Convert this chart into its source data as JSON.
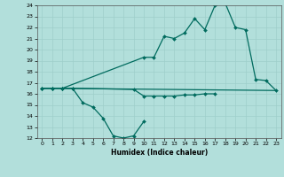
{
  "xlabel": "Humidex (Indice chaleur)",
  "bg_color": "#b2dfdb",
  "line_color": "#006b5e",
  "x_values": [
    0,
    1,
    2,
    3,
    4,
    5,
    6,
    7,
    8,
    9,
    10,
    11,
    12,
    13,
    14,
    15,
    16,
    17,
    18,
    19,
    20,
    21,
    22,
    23
  ],
  "series_zigzag": [
    16.5,
    16.5,
    16.5,
    16.5,
    15.2,
    14.8,
    13.8,
    12.2,
    12.0,
    12.2,
    13.5,
    null,
    null,
    null,
    null,
    null,
    null,
    null,
    null,
    null,
    null,
    null,
    null,
    null
  ],
  "series_low_flat": [
    16.5,
    16.5,
    16.5,
    16.5,
    null,
    null,
    null,
    null,
    null,
    16.4,
    15.8,
    15.8,
    15.8,
    15.8,
    15.9,
    15.9,
    16.0,
    16.0,
    null,
    null,
    null,
    null,
    null,
    null
  ],
  "series_main": [
    16.5,
    16.5,
    16.5,
    null,
    null,
    null,
    null,
    null,
    null,
    null,
    19.3,
    19.3,
    21.2,
    21.0,
    21.5,
    22.8,
    21.8,
    24.0,
    24.2,
    22.0,
    21.8,
    17.3,
    17.2,
    16.3
  ],
  "series_straight": [
    16.5,
    16.5,
    null,
    null,
    null,
    null,
    null,
    null,
    null,
    null,
    null,
    null,
    null,
    null,
    null,
    null,
    null,
    null,
    null,
    null,
    null,
    null,
    null,
    16.3
  ],
  "ylim": [
    12,
    24
  ],
  "yticks": [
    12,
    13,
    14,
    15,
    16,
    17,
    18,
    19,
    20,
    21,
    22,
    23,
    24
  ],
  "xlim": [
    -0.5,
    23.5
  ]
}
